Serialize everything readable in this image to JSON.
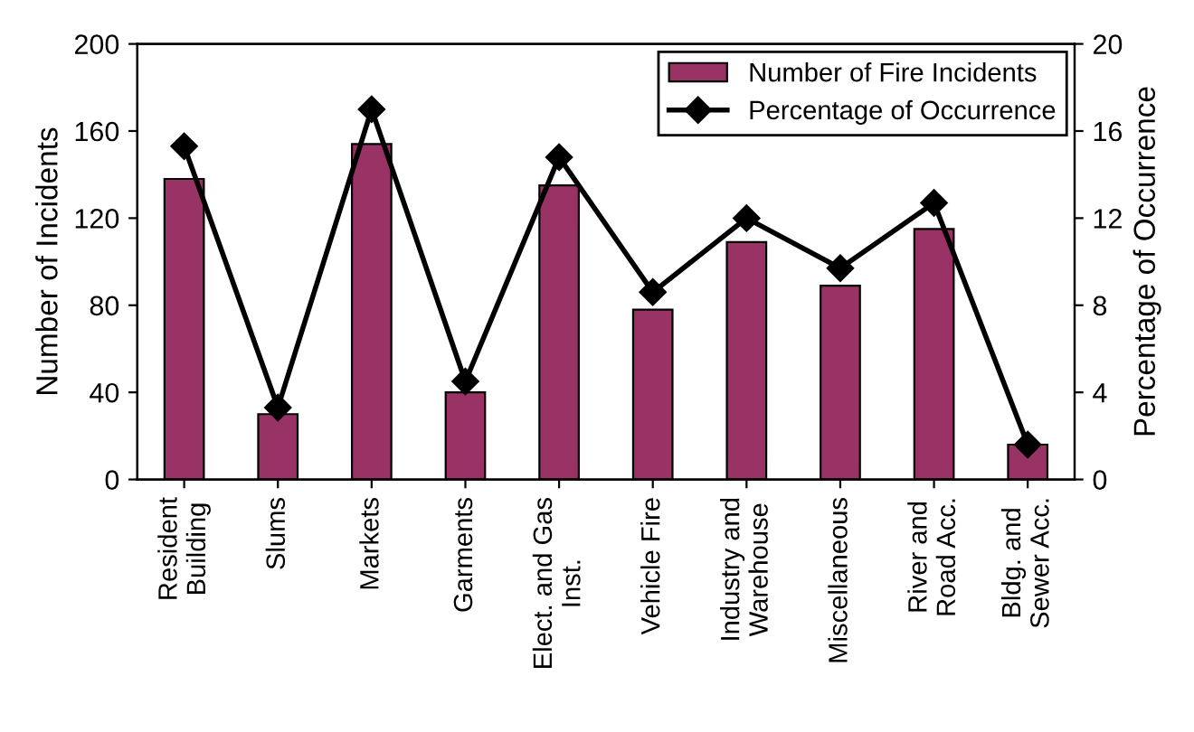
{
  "chart_data": {
    "type": "bar",
    "ylabel": "Number of Incidents",
    "y2label": "Percentage of Occurrence",
    "categories": [
      "Resident\nBuilding",
      "Slums",
      "Markets",
      "Garments",
      "Elect. and Gas\nInst.",
      "Vehicle Fire",
      "Industry and\nWarehouse",
      "Miscellaneous",
      "River and\nRoad Acc.",
      "Bldg. and\nSewer Acc."
    ],
    "series": [
      {
        "name": "Number of Fire Incidents",
        "color": "#993366",
        "values": [
          138,
          30,
          154,
          40,
          135,
          78,
          109,
          89,
          115,
          16
        ]
      },
      {
        "name": "Percentage of Occurrence",
        "type": "line",
        "axis": "y2",
        "color": "#000000",
        "marker": "diamond",
        "values": [
          15.3,
          3.3,
          17.0,
          4.5,
          14.8,
          8.6,
          12.0,
          9.7,
          12.7,
          1.6
        ]
      }
    ],
    "ylim": [
      0,
      200
    ],
    "yticks": [
      0,
      40,
      80,
      120,
      160,
      200
    ],
    "y2lim": [
      0,
      20
    ],
    "y2ticks": [
      0,
      4,
      8,
      12,
      16,
      20
    ],
    "grid": false,
    "legend": "top right"
  }
}
